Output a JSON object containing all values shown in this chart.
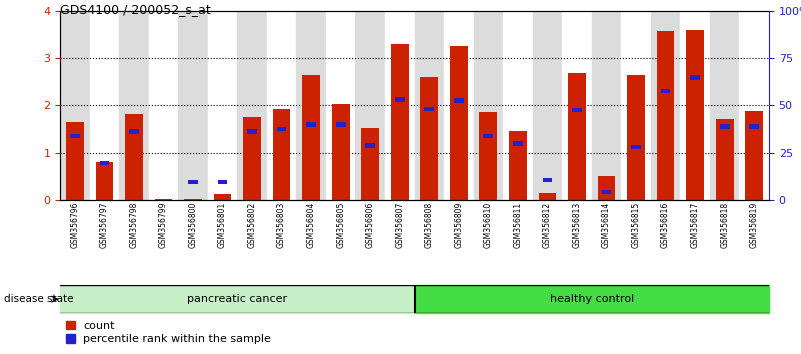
{
  "title": "GDS4100 / 200052_s_at",
  "samples": [
    "GSM356796",
    "GSM356797",
    "GSM356798",
    "GSM356799",
    "GSM356800",
    "GSM356801",
    "GSM356802",
    "GSM356803",
    "GSM356804",
    "GSM356805",
    "GSM356806",
    "GSM356807",
    "GSM356808",
    "GSM356809",
    "GSM356810",
    "GSM356811",
    "GSM356812",
    "GSM356813",
    "GSM356814",
    "GSM356815",
    "GSM356816",
    "GSM356817",
    "GSM356818",
    "GSM356819"
  ],
  "red_values": [
    1.65,
    0.8,
    1.82,
    0.02,
    0.02,
    0.12,
    1.75,
    1.93,
    2.65,
    2.02,
    1.52,
    3.3,
    2.6,
    3.25,
    1.85,
    1.45,
    0.15,
    2.68,
    0.5,
    2.65,
    3.58,
    3.6,
    1.72,
    1.87
  ],
  "blue_values_scaled": [
    1.35,
    0.78,
    1.45,
    0.0,
    0.38,
    0.38,
    1.45,
    1.5,
    1.6,
    1.6,
    1.15,
    2.12,
    1.92,
    2.1,
    1.35,
    1.2,
    0.42,
    1.9,
    0.17,
    1.12,
    2.3,
    2.58,
    1.55,
    1.55
  ],
  "group1_count": 12,
  "group1_label": "pancreatic cancer",
  "group2_label": "healthy control",
  "group1_color": "#C8F0C8",
  "group2_color": "#44DD44",
  "disease_state_label": "disease state",
  "legend_count": "count",
  "legend_percentile": "percentile rank within the sample",
  "bar_color_red": "#CC2200",
  "bar_color_blue": "#2222CC",
  "ylim_left": [
    0,
    4
  ],
  "ylim_right": [
    0,
    100
  ],
  "yticks_left": [
    0,
    1,
    2,
    3,
    4
  ],
  "yticks_right": [
    0,
    25,
    50,
    75,
    100
  ],
  "ytick_labels_right": [
    "0",
    "25",
    "50",
    "75",
    "100%"
  ],
  "bar_width": 0.6,
  "col_bg_even": "#DCDCDC",
  "col_bg_odd": "#FFFFFF"
}
